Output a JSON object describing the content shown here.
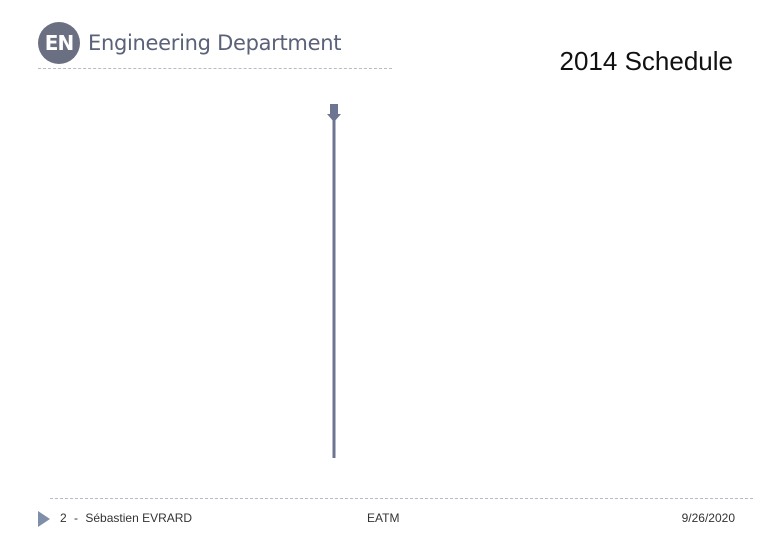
{
  "header": {
    "logo_mark": "EN",
    "logo_text": "Engineering Department",
    "title": "2014 Schedule"
  },
  "timeline": {
    "color": "#6c7591",
    "icon": "arrow-down-icon"
  },
  "footer": {
    "icon": "triangle-right-icon",
    "page_number": "2",
    "separator": "-",
    "author": "Sébastien EVRARD",
    "center": "EATM",
    "date": "9/26/2020"
  },
  "colors": {
    "accent": "#7f8fa9",
    "logo": "#6b6f82"
  }
}
